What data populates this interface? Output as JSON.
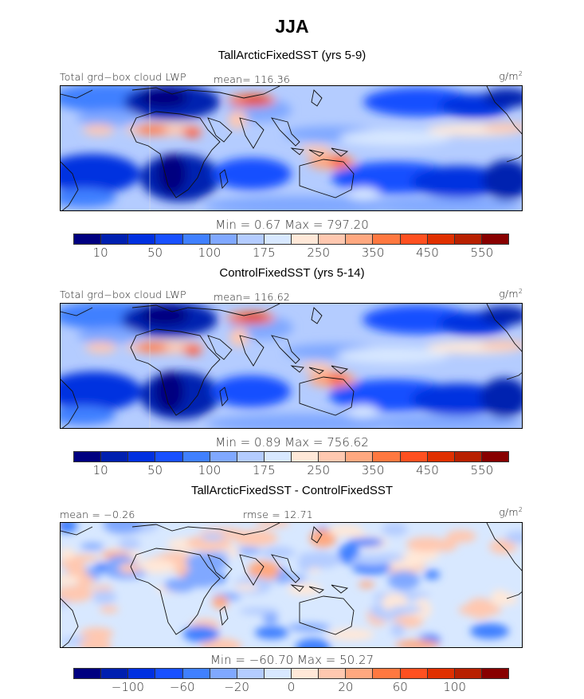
{
  "title": "JJA",
  "colors": [
    "#000080",
    "#0020b0",
    "#0030e0",
    "#1850ff",
    "#4080ff",
    "#80a8ff",
    "#b4ccff",
    "#d8e8ff",
    "#ffe8d8",
    "#ffc8b0",
    "#ffa880",
    "#ff7840",
    "#ff5020",
    "#e03000",
    "#b82000",
    "#880000"
  ],
  "panels": [
    {
      "subtitle": "TallArcticFixedSST (yrs 5-9)",
      "left_label": "Total grd−box cloud LWP",
      "center_label": "mean=  116.36",
      "units": "g/m",
      "units_sup": "2",
      "minmax": "Min =    0.67  Max =  797.20",
      "ticks": [
        {
          "boundary": 1,
          "label": "10"
        },
        {
          "boundary": 3,
          "label": "50"
        },
        {
          "boundary": 5,
          "label": "100"
        },
        {
          "boundary": 7,
          "label": "175"
        },
        {
          "boundary": 9,
          "label": "250"
        },
        {
          "boundary": 11,
          "label": "350"
        },
        {
          "boundary": 13,
          "label": "450"
        },
        {
          "boundary": 15,
          "label": "550"
        }
      ]
    },
    {
      "subtitle": "ControlFixedSST (yrs 5-14)",
      "left_label": "Total grd−box cloud LWP",
      "center_label": "mean=  116.62",
      "units": "g/m",
      "units_sup": "2",
      "minmax": "Min =    0.89  Max =  756.62",
      "ticks": [
        {
          "boundary": 1,
          "label": "10"
        },
        {
          "boundary": 3,
          "label": "50"
        },
        {
          "boundary": 5,
          "label": "100"
        },
        {
          "boundary": 7,
          "label": "175"
        },
        {
          "boundary": 9,
          "label": "250"
        },
        {
          "boundary": 11,
          "label": "350"
        },
        {
          "boundary": 13,
          "label": "450"
        },
        {
          "boundary": 15,
          "label": "550"
        }
      ]
    },
    {
      "subtitle": "TallArcticFixedSST - ControlFixedSST",
      "left_label": "mean =   −0.26",
      "center_label": "rmse =   12.71",
      "units": "g/m",
      "units_sup": "2",
      "minmax": "Min = −60.70  Max =   50.27",
      "ticks": [
        {
          "boundary": 2,
          "label": "−100"
        },
        {
          "boundary": 4,
          "label": "−60"
        },
        {
          "boundary": 6,
          "label": "−20"
        },
        {
          "boundary": 8,
          "label": "0"
        },
        {
          "boundary": 10,
          "label": "20"
        },
        {
          "boundary": 12,
          "label": "60"
        },
        {
          "boundary": 14,
          "label": "100"
        }
      ]
    }
  ]
}
